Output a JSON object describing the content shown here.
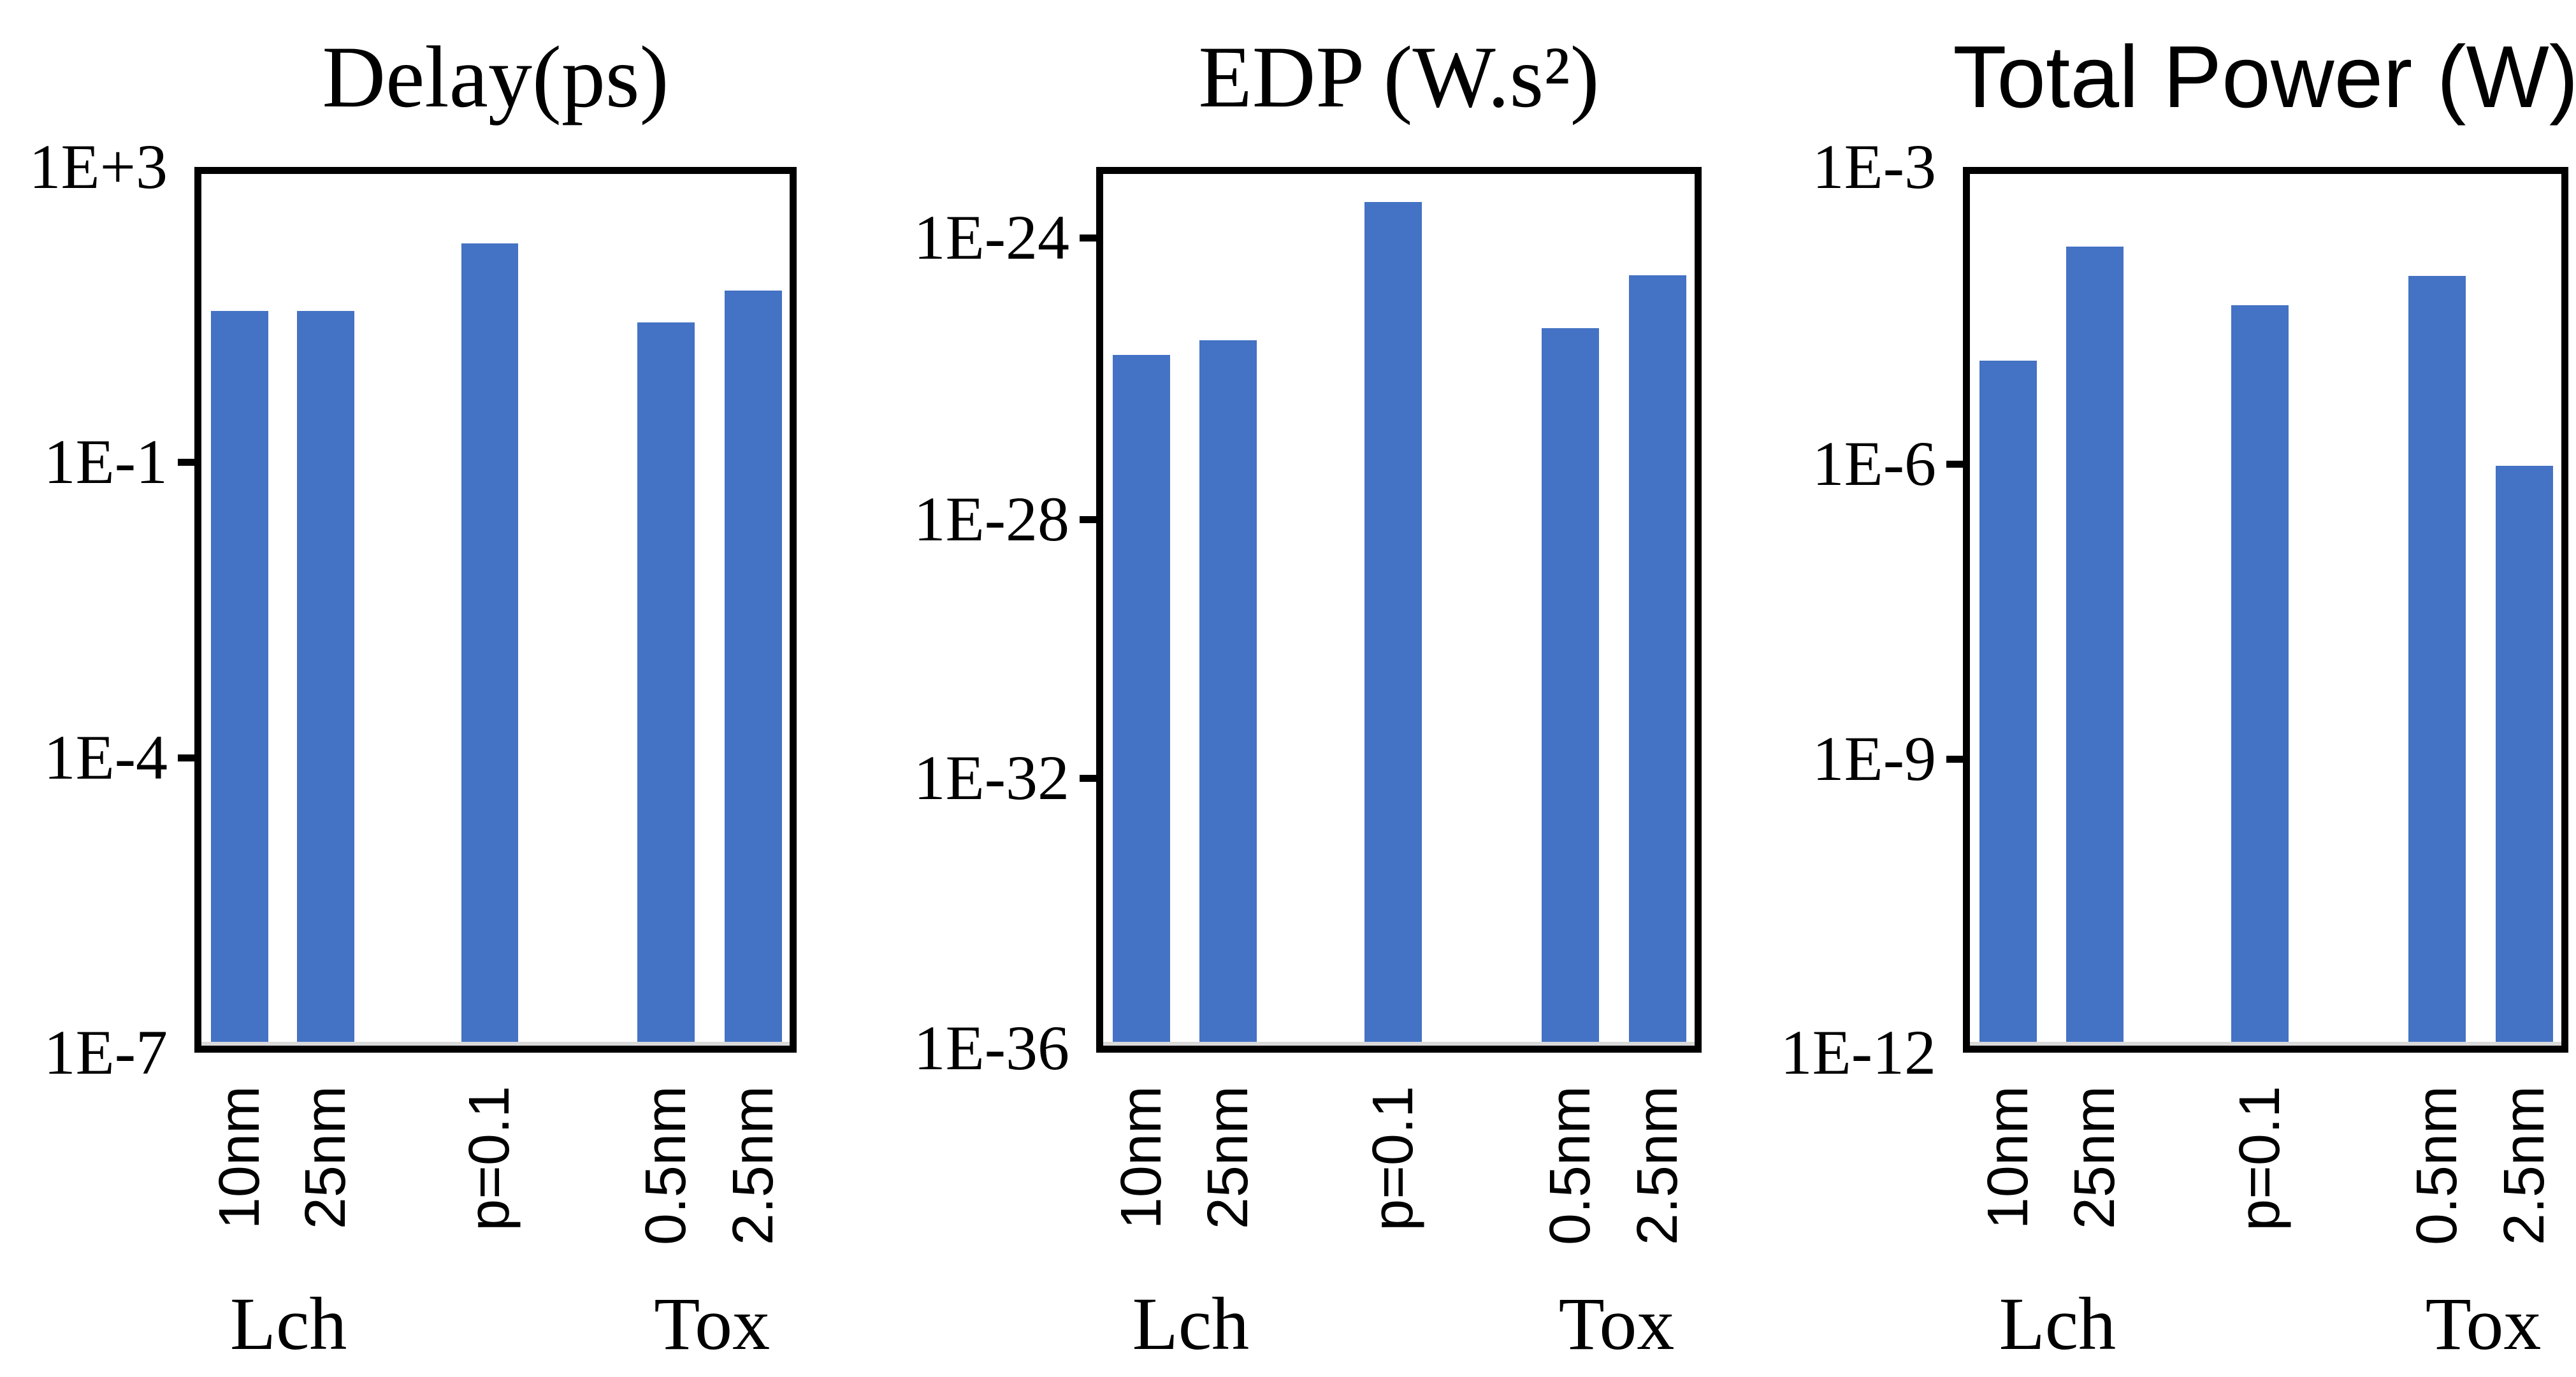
{
  "page": {
    "background": "#ffffff"
  },
  "style": {
    "bar_color": "#4472C4",
    "frame_color": "#000000",
    "baseline_color": "#d9d9d9",
    "text_color": "#000000"
  },
  "chart_data": [
    {
      "type": "bar",
      "title": "Delay(ps)",
      "y_axis": {
        "scale": "log",
        "range_top": 1000.0,
        "range_bottom": 1e-07,
        "grid": false,
        "ticks": [
          {
            "label": "1E+3",
            "value": 1000.0,
            "pos": 0
          },
          {
            "label": "1E-1",
            "value": 0.1,
            "pos": 0.3333
          },
          {
            "label": "1E-4",
            "value": 0.0001,
            "pos": 0.6667
          },
          {
            "label": "1E-7",
            "value": 1e-07,
            "pos": 1
          }
        ]
      },
      "categories": [
        "10nm",
        "25nm",
        "p=0.1",
        "0.5nm",
        "2.5nm"
      ],
      "values": [
        13,
        13,
        110,
        9,
        25
      ],
      "group_labels": [
        "Lch",
        "Tox"
      ],
      "legend": false
    },
    {
      "type": "bar",
      "title": "EDP (W.s²)",
      "y_axis": {
        "scale": "log",
        "range_top": 1e-23,
        "range_bottom": 1e-36,
        "grid": false,
        "ticks": [
          {
            "label": "1E-24",
            "value": 1e-24,
            "pos": 0.08
          },
          {
            "label": "1E-28",
            "value": 1e-28,
            "pos": 0.398
          },
          {
            "label": "1E-32",
            "value": 1e-32,
            "pos": 0.69
          },
          {
            "label": "1E-36",
            "value": 1e-36,
            "pos": 0.995
          }
        ]
      },
      "categories": [
        "10nm",
        "25nm",
        "p=0.1",
        "0.5nm",
        "2.5nm"
      ],
      "values": [
        2.5e-26,
        4e-26,
        4e-24,
        6e-26,
        3.5e-25
      ],
      "group_labels": [
        "Lch",
        "Tox"
      ],
      "legend": false
    },
    {
      "type": "bar",
      "title": "Total Power (W)",
      "y_axis": {
        "scale": "log",
        "range_top": 0.001,
        "range_bottom": 1e-12,
        "grid": false,
        "ticks": [
          {
            "label": "1E-3",
            "value": 0.001,
            "pos": 0
          },
          {
            "label": "1E-6",
            "value": 1e-06,
            "pos": 0.335
          },
          {
            "label": "1E-9",
            "value": 1e-09,
            "pos": 0.668
          },
          {
            "label": "1E-12",
            "value": 1e-12,
            "pos": 1
          }
        ]
      },
      "categories": [
        "10nm",
        "25nm",
        "p=0.1",
        "0.5nm",
        "2.5nm"
      ],
      "values": [
        1.2e-05,
        0.00018,
        4.5e-05,
        9e-05,
        1e-06
      ],
      "group_labels": [
        "Lch",
        "Tox"
      ],
      "legend": false
    }
  ]
}
